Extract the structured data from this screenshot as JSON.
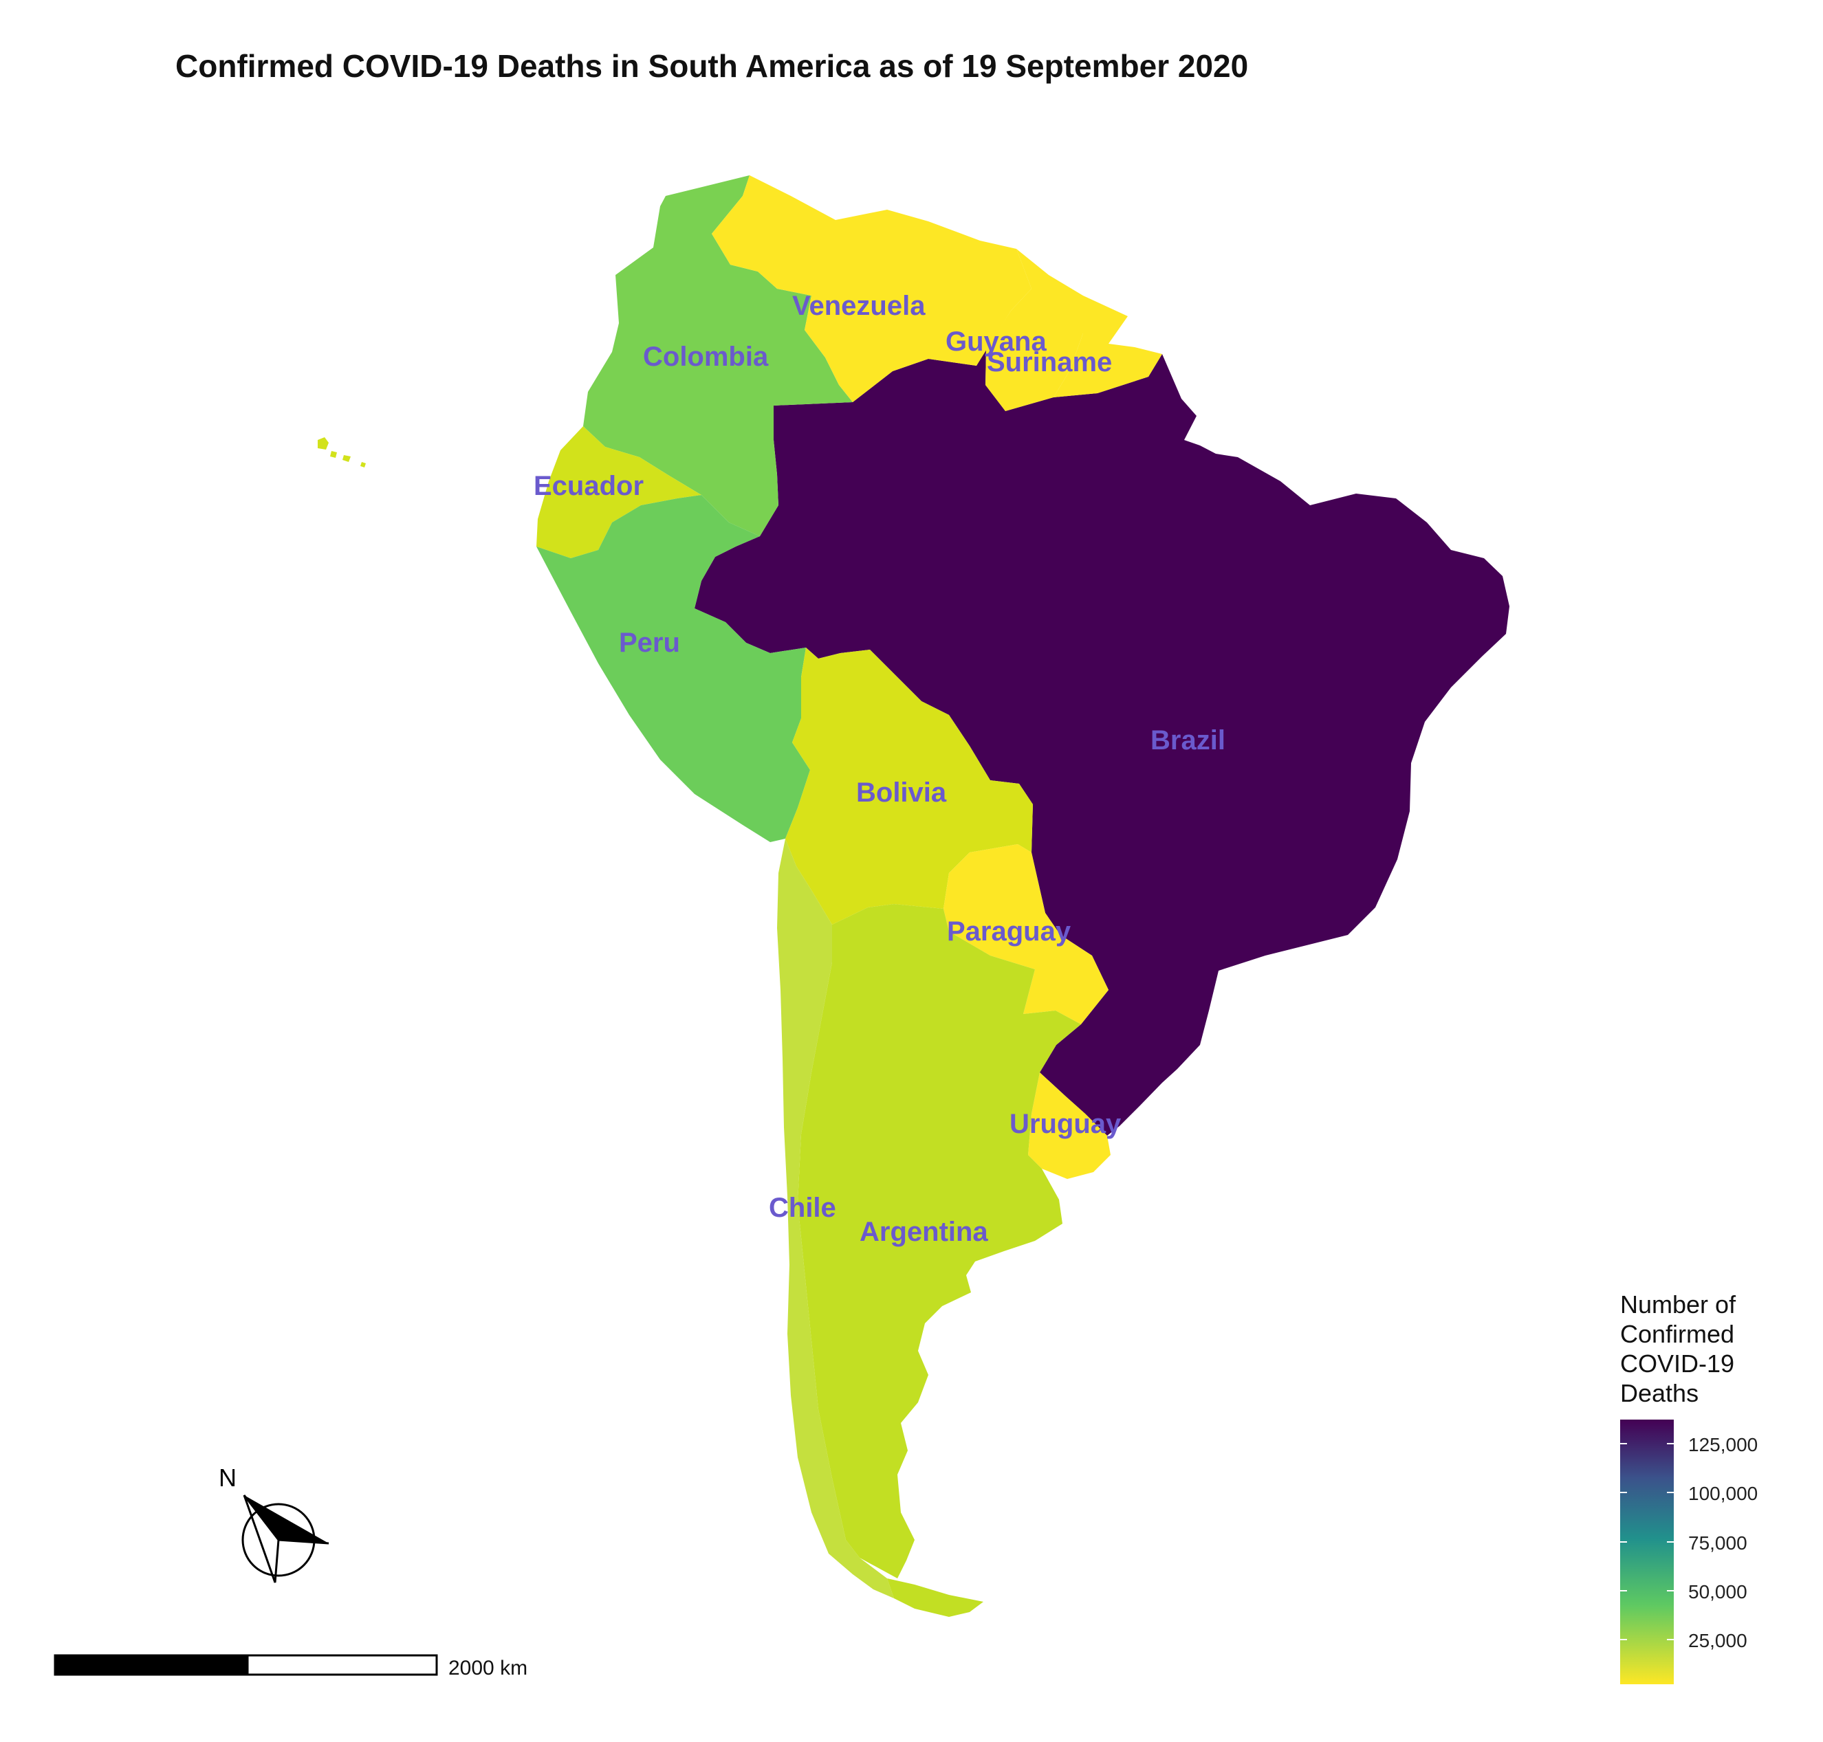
{
  "title": "Confirmed COVID-19 Deaths in South America as of 19 September 2020",
  "label_color": "#6a5acd",
  "countries": [
    {
      "name": "Brazil",
      "label": "Brazil",
      "fill": "#440154"
    },
    {
      "name": "Colombia",
      "label": "Colombia",
      "fill": "#7ad151"
    },
    {
      "name": "Venezuela",
      "label": "Venezuela",
      "fill": "#fde725"
    },
    {
      "name": "Guyana",
      "label": "Guyana",
      "fill": "#fde725"
    },
    {
      "name": "Suriname",
      "label": "Suriname",
      "fill": "#fde725"
    },
    {
      "name": "Ecuador",
      "label": "Ecuador",
      "fill": "#d2e21b"
    },
    {
      "name": "Peru",
      "label": "Peru",
      "fill": "#6ccd5a"
    },
    {
      "name": "Bolivia",
      "label": "Bolivia",
      "fill": "#d8e219"
    },
    {
      "name": "Paraguay",
      "label": "Paraguay",
      "fill": "#fde725"
    },
    {
      "name": "Uruguay",
      "label": "Uruguay",
      "fill": "#fde725"
    },
    {
      "name": "Chile",
      "label": "Chile",
      "fill": "#c5e03e"
    },
    {
      "name": "Argentina",
      "label": "Argentina",
      "fill": "#c2df23"
    }
  ],
  "legend": {
    "title_lines": [
      "Number of",
      "Confirmed",
      "COVID-19",
      "Deaths"
    ],
    "ticks": [
      "125,000",
      "100,000",
      "75,000",
      "50,000",
      "25,000"
    ],
    "colors": [
      "#440154",
      "#3b528b",
      "#21918c",
      "#5ec962",
      "#fde725"
    ]
  },
  "scale_bar": {
    "label": "2000 km"
  },
  "north_arrow": {
    "label": "N"
  }
}
